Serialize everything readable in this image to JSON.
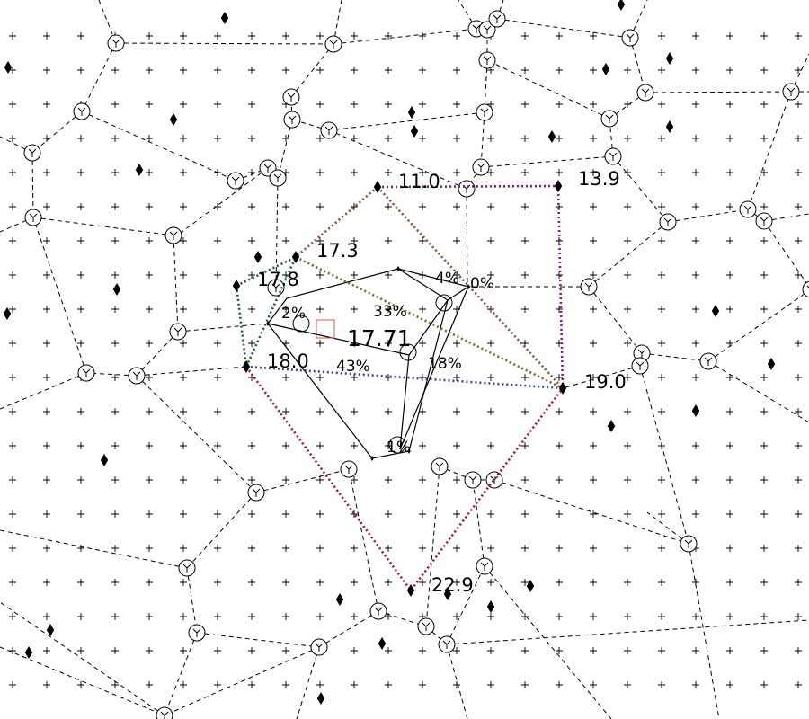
{
  "colors": {
    "background": "#ffffff",
    "ink": "#000000",
    "green_edge": "#1f5a3a",
    "purple_edge": "#7a1f7a",
    "red_edge": "#a01040",
    "blue_edge": "#3a4a8a",
    "olive_edge": "#6b6b2a",
    "query_marker": "#e05050"
  },
  "diagram": {
    "center_value": "17.71",
    "sample_values": [
      "11.0",
      "13.9",
      "17.3",
      "17.8",
      "18.0",
      "19.0",
      "22.9"
    ],
    "weight_labels": [
      "4%",
      "0%",
      "2%",
      "33%",
      "43%",
      "18%",
      "1%"
    ]
  }
}
